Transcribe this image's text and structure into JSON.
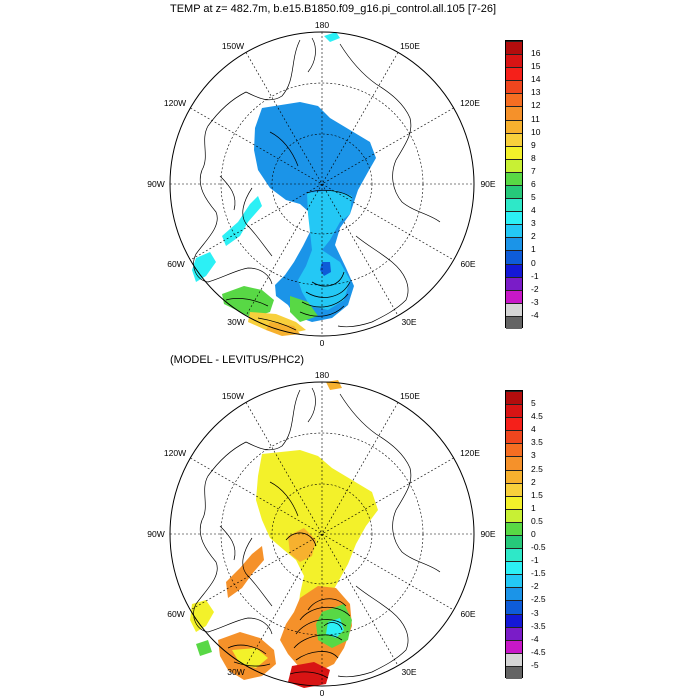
{
  "panel_top": {
    "title": "TEMP at z= 482.7m, b.e15.B1850.f09_g16.pi_control.all.105 [7-26]",
    "lon_labels": {
      "top": "180",
      "tl": "150W",
      "tr": "150E",
      "ul": "120W",
      "ur": "120E",
      "ml": "90W",
      "mr": "90E",
      "ll": "60W",
      "lr": "60E",
      "bl": "30W",
      "br": "30E",
      "bottom": "0"
    },
    "colorbar": {
      "labels": [
        "16",
        "15",
        "14",
        "13",
        "12",
        "11",
        "10",
        "9",
        "8",
        "7",
        "6",
        "5",
        "4",
        "3",
        "2",
        "1",
        "0",
        "-1",
        "-2",
        "-3",
        "-4"
      ],
      "colors": [
        "#b20d0d",
        "#d81414",
        "#f5201a",
        "#f0461e",
        "#f56e22",
        "#f5912a",
        "#f7b12e",
        "#f8d03c",
        "#f3f12a",
        "#c8f034",
        "#58d845",
        "#26c87a",
        "#2ee8c8",
        "#2cf0f5",
        "#24c8f5",
        "#1b94e8",
        "#0e5cd8",
        "#1418d6",
        "#7a1cc8",
        "#c818c8",
        "#d6d6d6",
        "#646464"
      ]
    },
    "map_fill_colors": {
      "core": "#1b94e8",
      "center": "#24c8f5",
      "cold_patch": "#0e5cd8",
      "cyan": "#2cf0f5",
      "green": "#58d845",
      "yellow": "#f8d03c",
      "orange": "#f7b12e"
    }
  },
  "panel_bottom": {
    "title": "(MODEL - LEVITUS/PHC2)",
    "lon_labels": {
      "top": "180",
      "tl": "150W",
      "tr": "150E",
      "ul": "120W",
      "ur": "120E",
      "ml": "90W",
      "mr": "90E",
      "ll": "60W",
      "lr": "60E",
      "bl": "30W",
      "br": "30E",
      "bottom": "0"
    },
    "colorbar": {
      "labels": [
        "5",
        "4.5",
        "4",
        "3.5",
        "3",
        "2.5",
        "2",
        "1.5",
        "1",
        "0.5",
        "0",
        "-0.5",
        "-1",
        "-1.5",
        "-2",
        "-2.5",
        "-3",
        "-3.5",
        "-4",
        "-4.5",
        "-5"
      ],
      "colors": [
        "#b20d0d",
        "#d81414",
        "#f5201a",
        "#f0461e",
        "#f56e22",
        "#f5912a",
        "#f7b12e",
        "#f8d03c",
        "#f3f12a",
        "#c8f034",
        "#58d845",
        "#26c87a",
        "#2ee8c8",
        "#2cf0f5",
        "#24c8f5",
        "#1b94e8",
        "#0e5cd8",
        "#1418d6",
        "#7a1cc8",
        "#c818c8",
        "#d6d6d6",
        "#646464"
      ]
    },
    "map_fill_colors": {
      "yellow": "#f3f12a",
      "gold": "#f7b12e",
      "orange": "#f5912a",
      "green": "#58d845",
      "cyan": "#2cf0f5",
      "red": "#d81414"
    }
  }
}
